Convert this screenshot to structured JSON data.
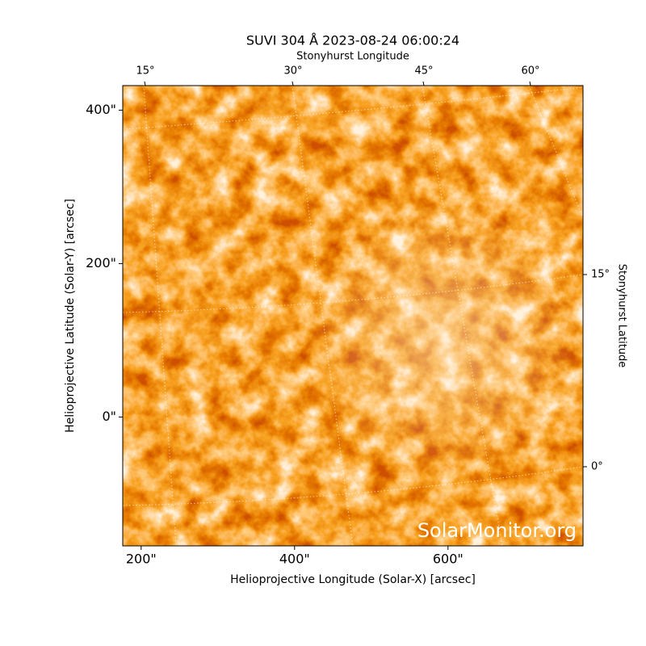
{
  "chart_data": {
    "type": "image",
    "title": "SUVI 304 Å 2023-08-24 06:00:24",
    "xlabel": "Helioprojective Longitude (Solar-X) [arcsec]",
    "ylabel": "Helioprojective Latitude (Solar-Y) [arcsec]",
    "top_label": "Stonyhurst Longitude",
    "right_label": "Stonyhurst Latitude",
    "xlim": [
      176,
      776
    ],
    "ylim": [
      -168,
      432
    ],
    "xticks": [
      {
        "value": 200,
        "label": "200\""
      },
      {
        "value": 400,
        "label": "400\""
      },
      {
        "value": 600,
        "label": "600\""
      }
    ],
    "yticks": [
      {
        "value": 0,
        "label": "0\""
      },
      {
        "value": 200,
        "label": "200\""
      },
      {
        "value": 400,
        "label": "400\""
      }
    ],
    "top_ticks": [
      "15°",
      "30°",
      "45°",
      "60°"
    ],
    "right_ticks": [
      "15°",
      "0°"
    ],
    "watermark": "SolarMonitor.org"
  }
}
